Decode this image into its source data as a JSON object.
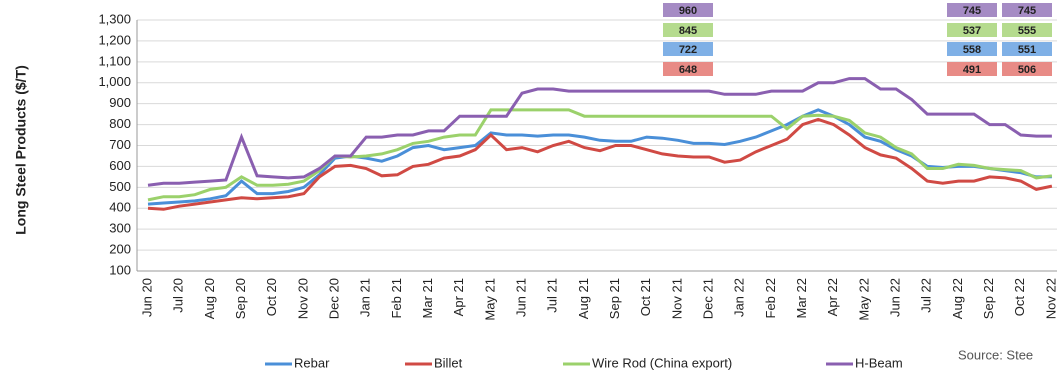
{
  "chart_data": {
    "type": "line",
    "y_label": "Long Steel Products ($/T)",
    "source": "Source: Stee",
    "categories": [
      "Jun 20",
      null,
      "Jul 20",
      null,
      "Aug 20",
      null,
      "Sep 20",
      null,
      "Oct 20",
      null,
      "Nov 20",
      null,
      "Dec 20",
      null,
      "Jan 21",
      null,
      "Feb 21",
      null,
      "Mar 21",
      null,
      "Apr 21",
      null,
      "May 21",
      null,
      "Jun 21",
      null,
      "Jul 21",
      null,
      "Aug 21",
      null,
      "Sep 21",
      null,
      "Oct 21",
      null,
      "Nov 21",
      null,
      "Dec 21",
      null,
      "Jan 22",
      null,
      "Feb 22",
      null,
      "Mar 22",
      null,
      "Apr 22",
      null,
      "May 22",
      null,
      "Jun 22",
      null,
      "Jul 22",
      null,
      "Aug 22",
      null,
      "Sep 22",
      null,
      "Oct 22",
      null,
      "Nov 22"
    ],
    "series": [
      {
        "name": "Rebar",
        "color": "#4a8fd8",
        "values": [
          420,
          425,
          430,
          435,
          445,
          460,
          530,
          470,
          470,
          480,
          500,
          560,
          640,
          650,
          640,
          625,
          650,
          690,
          700,
          680,
          690,
          700,
          760,
          750,
          750,
          745,
          750,
          750,
          740,
          725,
          720,
          720,
          740,
          735,
          725,
          710,
          710,
          705,
          720,
          740,
          770,
          800,
          840,
          870,
          840,
          800,
          740,
          720,
          680,
          650,
          600,
          595,
          600,
          600,
          590,
          580,
          570,
          550,
          551
        ]
      },
      {
        "name": "Billet",
        "color": "#d04a44",
        "values": [
          400,
          395,
          410,
          420,
          430,
          440,
          450,
          445,
          450,
          455,
          470,
          550,
          600,
          605,
          590,
          555,
          560,
          600,
          610,
          640,
          650,
          680,
          750,
          680,
          690,
          670,
          700,
          720,
          690,
          675,
          700,
          700,
          680,
          660,
          650,
          645,
          645,
          620,
          630,
          670,
          700,
          730,
          800,
          825,
          800,
          750,
          690,
          655,
          640,
          590,
          530,
          520,
          530,
          530,
          550,
          545,
          530,
          490,
          506
        ]
      },
      {
        "name": "Wire Rod (China export)",
        "color": "#9bd16b",
        "values": [
          440,
          455,
          455,
          465,
          490,
          500,
          550,
          510,
          510,
          515,
          530,
          580,
          650,
          645,
          650,
          660,
          680,
          710,
          720,
          740,
          750,
          750,
          870,
          870,
          870,
          870,
          870,
          870,
          840,
          840,
          840,
          840,
          840,
          840,
          840,
          840,
          840,
          840,
          840,
          840,
          840,
          780,
          840,
          845,
          840,
          820,
          760,
          740,
          690,
          660,
          590,
          590,
          610,
          605,
          590,
          585,
          580,
          545,
          555
        ]
      },
      {
        "name": "H-Beam",
        "color": "#8a5fb0",
        "values": [
          510,
          520,
          520,
          525,
          530,
          535,
          740,
          555,
          550,
          545,
          550,
          590,
          650,
          650,
          740,
          740,
          750,
          750,
          770,
          770,
          840,
          840,
          840,
          840,
          950,
          970,
          970,
          960,
          960,
          960,
          960,
          960,
          960,
          960,
          960,
          960,
          960,
          945,
          945,
          945,
          960,
          960,
          960,
          1000,
          1000,
          1020,
          1020,
          970,
          970,
          920,
          850,
          850,
          850,
          850,
          800,
          800,
          750,
          745,
          745
        ]
      }
    ],
    "callouts": [
      [
        960,
        845,
        722,
        648
      ],
      [
        745,
        537,
        558,
        491
      ],
      [
        745,
        555,
        551,
        506
      ]
    ],
    "callout_colors": [
      "#a58bc4",
      "#b5db8e",
      "#7fb0e6",
      "#e88b86"
    ],
    "ylim": [
      100,
      1300
    ],
    "yticks": [
      100,
      200,
      300,
      400,
      500,
      600,
      700,
      800,
      900,
      {
        "value": 1000,
        "label": "1,000"
      },
      {
        "value": 1100,
        "label": "1,100"
      },
      {
        "value": 1200,
        "label": "1,200"
      },
      {
        "value": 1300,
        "label": "1,300"
      }
    ],
    "grid": true
  }
}
